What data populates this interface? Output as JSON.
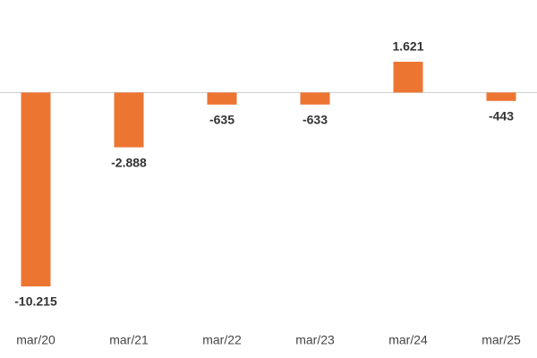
{
  "chart_data": {
    "type": "bar",
    "categories": [
      "mar/20",
      "mar/21",
      "mar/22",
      "mar/23",
      "mar/24",
      "mar/25"
    ],
    "values": [
      -10215,
      -2888,
      -635,
      -633,
      1621,
      -443
    ],
    "value_labels": [
      "-10.215",
      "-2.888",
      "-635",
      "-633",
      "1.621",
      "-443"
    ],
    "color": "#ed7532"
  }
}
